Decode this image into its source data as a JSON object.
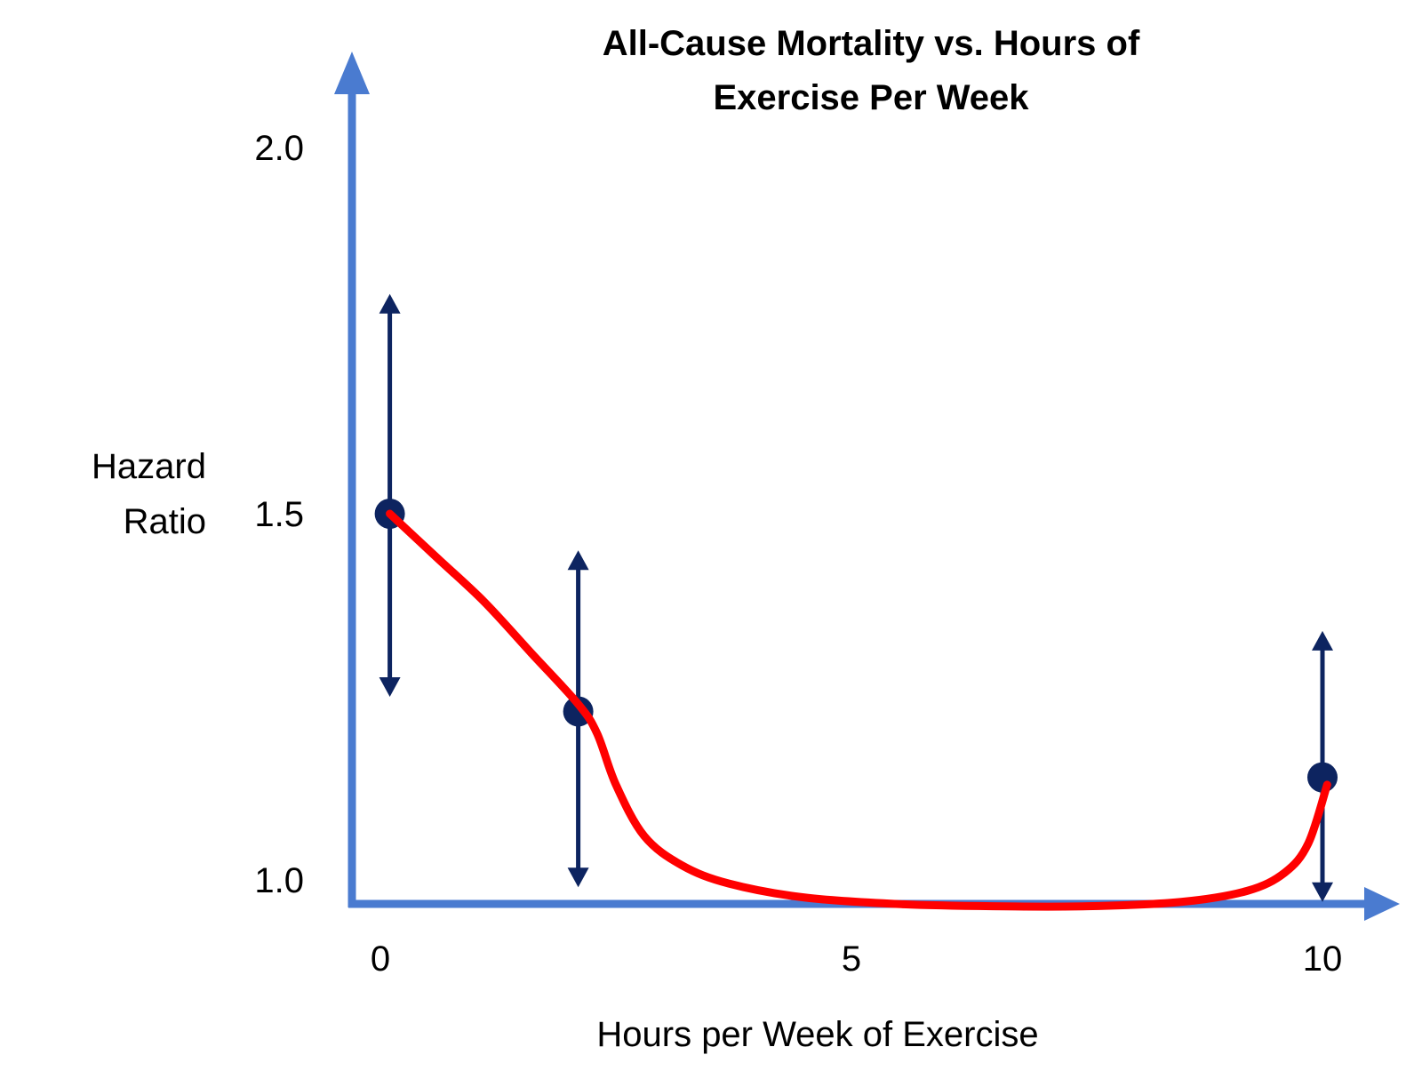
{
  "chart_data": {
    "type": "line",
    "title": [
      "All-Cause Mortality vs. Hours of",
      "Exercise Per Week"
    ],
    "xlabel": "Hours per Week of Exercise",
    "ylabel": [
      "Hazard",
      "Ratio"
    ],
    "x_ticks": [
      {
        "value": 0,
        "label": "0"
      },
      {
        "value": 5,
        "label": "5"
      },
      {
        "value": 10,
        "label": "10"
      }
    ],
    "y_ticks": [
      {
        "value": 1.0,
        "label": "1.0"
      },
      {
        "value": 1.5,
        "label": "1.5"
      },
      {
        "value": 2.0,
        "label": "2.0"
      }
    ],
    "xlim": [
      -0.3,
      10.7
    ],
    "ylim": [
      0.97,
      2.2
    ],
    "grid": false,
    "points": [
      {
        "x": 0.1,
        "y": 1.5,
        "lower": 1.25,
        "upper": 1.8
      },
      {
        "x": 2.1,
        "y": 1.23,
        "lower": 0.99,
        "upper": 1.45
      },
      {
        "x": 10.0,
        "y": 1.14,
        "lower": 0.97,
        "upper": 1.34
      }
    ],
    "curve": {
      "x": [
        0.1,
        0.6,
        1.1,
        1.6,
        2.1,
        2.3,
        2.5,
        2.8,
        3.2,
        3.7,
        4.5,
        5.5,
        6.5,
        7.5,
        8.5,
        9.2,
        9.6,
        9.85,
        10.05
      ],
      "y": [
        1.5,
        1.44,
        1.38,
        1.31,
        1.24,
        1.2,
        1.13,
        1.06,
        1.02,
        0.995,
        0.976,
        0.967,
        0.964,
        0.964,
        0.97,
        0.985,
        1.01,
        1.05,
        1.13
      ]
    },
    "colors": {
      "axis": "#4a7bd0",
      "error_bar": "#0d2460",
      "marker": "#0d2460",
      "curve": "#ff0000"
    }
  }
}
